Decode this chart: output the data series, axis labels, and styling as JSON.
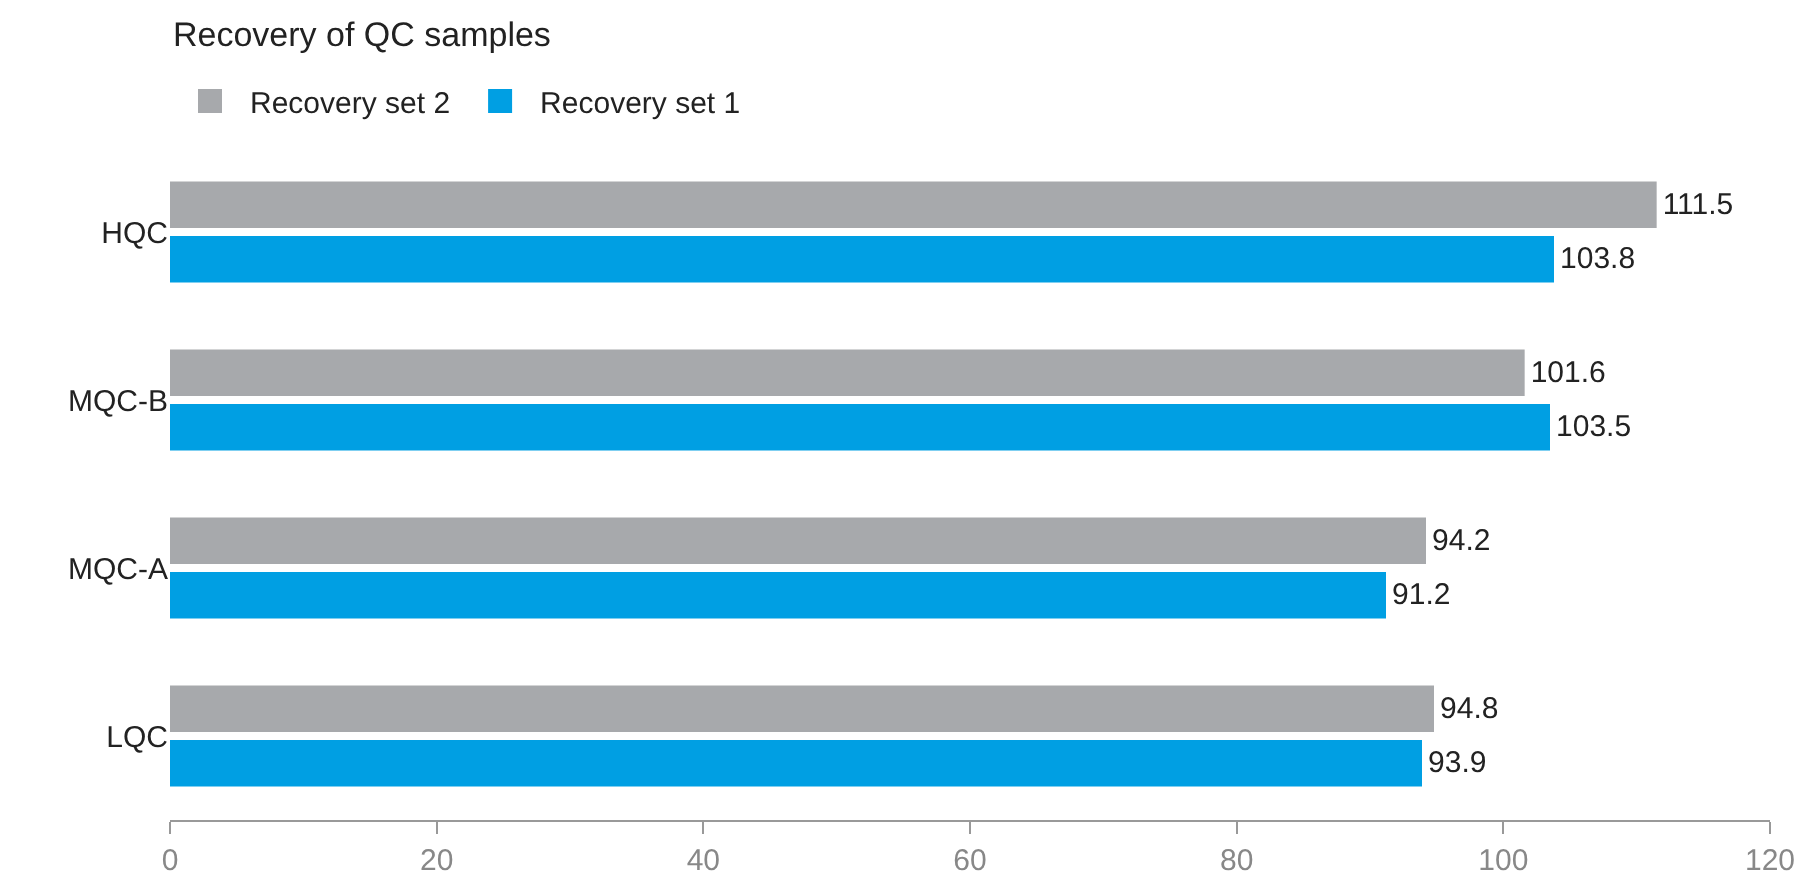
{
  "chart_data": {
    "type": "bar",
    "orientation": "horizontal",
    "title": "Recovery of QC samples",
    "categories": [
      "HQC",
      "MQC-B",
      "MQC-A",
      "LQC"
    ],
    "series": [
      {
        "name": "Recovery set 2",
        "color": "#a7a9ac",
        "values": [
          111.5,
          101.6,
          94.2,
          94.8
        ]
      },
      {
        "name": "Recovery set 1",
        "color": "#009fe3",
        "values": [
          103.8,
          103.5,
          91.2,
          93.9
        ]
      }
    ],
    "xlim": [
      0,
      120
    ],
    "xticks": [
      0,
      20,
      40,
      60,
      80,
      100,
      120
    ],
    "grid": false,
    "legend": "top left",
    "data_labels": true
  }
}
